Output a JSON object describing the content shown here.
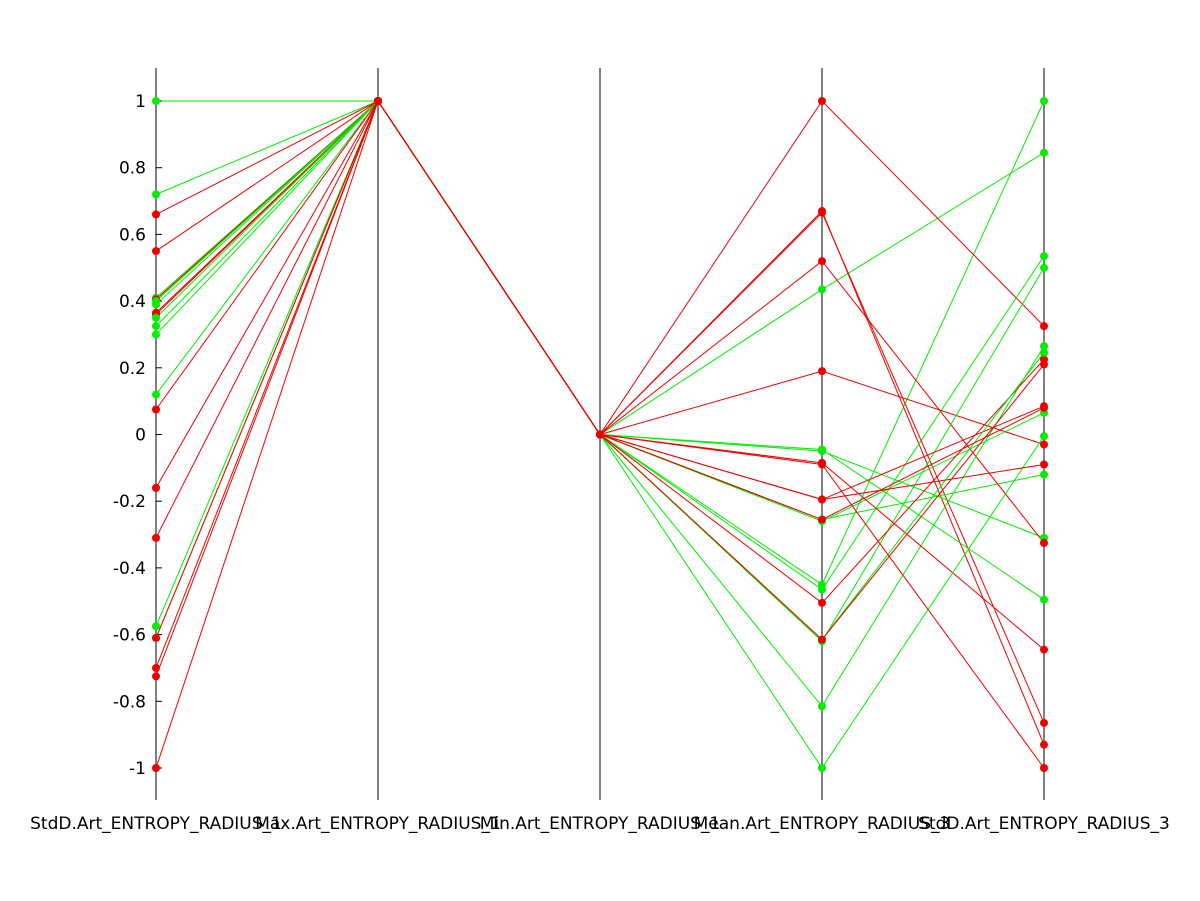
{
  "chart_data": {
    "type": "parallel-coordinates",
    "axes": [
      "StdD.Art_ENTROPY_RADIUS_1",
      "Max.Art_ENTROPY_RADIUS_1",
      "Min.Art_ENTROPY_RADIUS_1",
      "Mean.Art_ENTROPY_RADIUS_3",
      "StdD.Art_ENTROPY_RADIUS_3"
    ],
    "ylim": [
      -1.1,
      1.1
    ],
    "yticks": [
      "1",
      "0.8",
      "0.6",
      "0.4",
      "0.2",
      "0",
      "-0.2",
      "-0.4",
      "-0.6",
      "-0.8",
      "-1"
    ],
    "ytick_values": [
      1,
      0.8,
      0.6,
      0.4,
      0.2,
      0,
      -0.2,
      -0.4,
      -0.6,
      -0.8,
      -1
    ],
    "colors": {
      "green": "#00ee00",
      "red": "#ee0000"
    },
    "grid": false,
    "series": [
      {
        "color": "green",
        "values": [
          1.0,
          1,
          0,
          -0.45,
          1.0
        ]
      },
      {
        "color": "green",
        "values": [
          0.72,
          1,
          0,
          0.435,
          0.845
        ]
      },
      {
        "color": "red",
        "values": [
          0.66,
          1,
          0,
          1.0,
          0.325
        ]
      },
      {
        "color": "red",
        "values": [
          0.55,
          1,
          0,
          0.67,
          -0.93
        ]
      },
      {
        "color": "green",
        "values": [
          0.41,
          1,
          0,
          -0.465,
          0.535
        ]
      },
      {
        "color": "red",
        "values": [
          0.405,
          1,
          0,
          0.665,
          -0.865
        ]
      },
      {
        "color": "green",
        "values": [
          0.4,
          1,
          0,
          -0.05,
          -0.31
        ]
      },
      {
        "color": "green",
        "values": [
          0.39,
          1,
          0,
          -0.255,
          -0.12
        ]
      },
      {
        "color": "red",
        "values": [
          0.365,
          1,
          0,
          0.52,
          -0.325
        ]
      },
      {
        "color": "red",
        "values": [
          0.36,
          1,
          0,
          0.19,
          -0.03
        ]
      },
      {
        "color": "green",
        "values": [
          0.35,
          1,
          0,
          -0.045,
          -0.495
        ]
      },
      {
        "color": "green",
        "values": [
          0.325,
          1,
          0,
          -0.62,
          0.5
        ]
      },
      {
        "color": "green",
        "values": [
          0.3,
          1,
          0,
          -0.26,
          0.065
        ]
      },
      {
        "color": "green",
        "values": [
          0.12,
          1,
          0,
          -0.815,
          0.265
        ]
      },
      {
        "color": "red",
        "values": [
          0.075,
          1,
          0,
          -0.085,
          -0.645
        ]
      },
      {
        "color": "red",
        "values": [
          -0.16,
          1,
          0,
          -0.195,
          0.085
        ]
      },
      {
        "color": "red",
        "values": [
          -0.31,
          1,
          0,
          -0.505,
          0.225
        ]
      },
      {
        "color": "green",
        "values": [
          -0.575,
          1,
          0,
          -1.0,
          -0.005
        ]
      },
      {
        "color": "green",
        "values": [
          -0.61,
          1,
          0,
          -0.615,
          0.245
        ]
      },
      {
        "color": "red",
        "values": [
          -0.61,
          1,
          0,
          -0.09,
          -1.0
        ]
      },
      {
        "color": "red",
        "values": [
          -0.7,
          1,
          0,
          -0.195,
          -0.09
        ]
      },
      {
        "color": "red",
        "values": [
          -0.725,
          1,
          0,
          -0.615,
          0.21
        ]
      },
      {
        "color": "red",
        "values": [
          -1.0,
          1,
          0,
          -0.255,
          0.08
        ]
      }
    ]
  }
}
